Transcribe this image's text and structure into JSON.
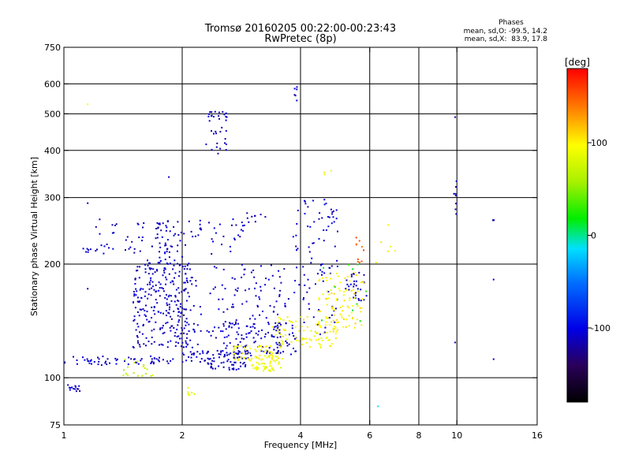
{
  "chart_data": {
    "type": "scatter",
    "title": "Tromsø 20160205 00:22:00-00:23:43",
    "subtitle": "RwPretec (8p)",
    "xlabel": "Frequency [MHz]",
    "ylabel": "Stationary phase Virtual Height [km]",
    "x_scale": "log",
    "y_scale": "log",
    "xlim": [
      1,
      16
    ],
    "ylim": [
      75,
      750
    ],
    "x_ticks": [
      1,
      2,
      4,
      6,
      8,
      10,
      16
    ],
    "x_tick_labels": [
      "1",
      "2",
      "4",
      "6",
      "8",
      "10",
      "16"
    ],
    "x_grid": [
      2,
      4,
      6,
      8,
      10
    ],
    "y_ticks": [
      75,
      100,
      200,
      300,
      400,
      500,
      600,
      750
    ],
    "y_tick_labels": [
      "75",
      "100",
      "200",
      "300",
      "400",
      "500",
      "600",
      "750"
    ],
    "y_grid": [
      100,
      200,
      300,
      400,
      500,
      600
    ],
    "grid": true,
    "legend": {
      "title": "Phases",
      "line1": "mean, sd,O: -99.5, 14.2",
      "line2": "mean, sd,X:  83.9, 17.8"
    },
    "colorbar": {
      "label": "[deg]",
      "min": -180,
      "max": 180,
      "ticks": [
        -100,
        0,
        100
      ],
      "tick_labels": [
        "-100",
        "0",
        "100"
      ]
    },
    "o_mode_color_hint": "#1f2fd8",
    "x_mode_color_hint": "#e8e800",
    "clusters": [
      {
        "x": [
          1.0,
          1.9
        ],
        "y": [
          108,
          114
        ],
        "phase": -110,
        "n": 60
      },
      {
        "x": [
          1.0,
          1.1
        ],
        "y": [
          92,
          97
        ],
        "phase": -110,
        "n": 14
      },
      {
        "x": [
          1.1,
          1.17
        ],
        "y": [
          215,
          220
        ],
        "phase": -110,
        "n": 6
      },
      {
        "x": [
          1.2,
          2.9
        ],
        "y": [
          212,
          265
        ],
        "phase": -110,
        "n": 80
      },
      {
        "x": [
          1.5,
          2.1
        ],
        "y": [
          120,
          205
        ],
        "phase": -110,
        "n": 260
      },
      {
        "x": [
          1.7,
          2.0
        ],
        "y": [
          200,
          260
        ],
        "phase": -110,
        "n": 40
      },
      {
        "x": [
          2.0,
          3.0
        ],
        "y": [
          110,
          118
        ],
        "phase": -110,
        "n": 60
      },
      {
        "x": [
          2.3,
          2.9
        ],
        "y": [
          105,
          110
        ],
        "phase": -110,
        "n": 30
      },
      {
        "x": [
          2.0,
          3.8
        ],
        "y": [
          115,
          200
        ],
        "phase": -110,
        "n": 140
      },
      {
        "x": [
          2.5,
          3.9
        ],
        "y": [
          115,
          140
        ],
        "phase": -110,
        "n": 110
      },
      {
        "x": [
          3.8,
          5.0
        ],
        "y": [
          130,
          300
        ],
        "phase": -105,
        "n": 90
      },
      {
        "x": [
          2.3,
          2.6
        ],
        "y": [
          390,
          510
        ],
        "phase": -110,
        "n": 35
      },
      {
        "x": [
          3.85,
          3.95
        ],
        "y": [
          540,
          590
        ],
        "phase": -110,
        "n": 6
      },
      {
        "x": [
          2.7,
          3.3
        ],
        "y": [
          255,
          275
        ],
        "phase": -115,
        "n": 10
      },
      {
        "x": [
          5.2,
          5.9
        ],
        "y": [
          160,
          190
        ],
        "phase": -110,
        "n": 30
      },
      {
        "x": [
          5.5,
          5.8
        ],
        "y": [
          200,
          240
        ],
        "phase": 150,
        "n": 10
      },
      {
        "x": [
          2.7,
          3.6
        ],
        "y": [
          110,
          122
        ],
        "phase": 95,
        "n": 70
      },
      {
        "x": [
          3.0,
          3.6
        ],
        "y": [
          104,
          110
        ],
        "phase": 90,
        "n": 40
      },
      {
        "x": [
          3.4,
          5.0
        ],
        "y": [
          120,
          145
        ],
        "phase": 95,
        "n": 90
      },
      {
        "x": [
          4.4,
          5.8
        ],
        "y": [
          135,
          190
        ],
        "phase": 100,
        "n": 90
      },
      {
        "x": [
          1.4,
          1.7
        ],
        "y": [
          100,
          112
        ],
        "phase": 70,
        "n": 18
      },
      {
        "x": [
          2.05,
          2.15
        ],
        "y": [
          90,
          95
        ],
        "phase": 90,
        "n": 8
      },
      {
        "x": [
          4.5,
          5.9
        ],
        "y": [
          140,
          200
        ],
        "phase": 20,
        "n": 10
      },
      {
        "x": [
          4.6,
          4.8
        ],
        "y": [
          345,
          355
        ],
        "phase": 95,
        "n": 3
      },
      {
        "x": [
          6.0,
          7.0
        ],
        "y": [
          200,
          260
        ],
        "phase": 95,
        "n": 6
      },
      {
        "x": [
          9.8,
          10.0
        ],
        "y": [
          270,
          335
        ],
        "phase": -110,
        "n": 8
      },
      {
        "x": [
          12.3,
          12.5
        ],
        "y": [
          255,
          265
        ],
        "phase": -110,
        "n": 3
      }
    ],
    "isolated_points": [
      {
        "x": 1.15,
        "y": 530,
        "phase": 100
      },
      {
        "x": 1.15,
        "y": 290,
        "phase": -110
      },
      {
        "x": 1.85,
        "y": 340,
        "phase": -110
      },
      {
        "x": 1.15,
        "y": 172,
        "phase": -110
      },
      {
        "x": 6.3,
        "y": 84,
        "phase": -10
      },
      {
        "x": 9.9,
        "y": 490,
        "phase": -110
      },
      {
        "x": 9.9,
        "y": 124,
        "phase": -110
      },
      {
        "x": 12.4,
        "y": 182,
        "phase": -110
      },
      {
        "x": 12.4,
        "y": 112,
        "phase": -110
      }
    ]
  }
}
